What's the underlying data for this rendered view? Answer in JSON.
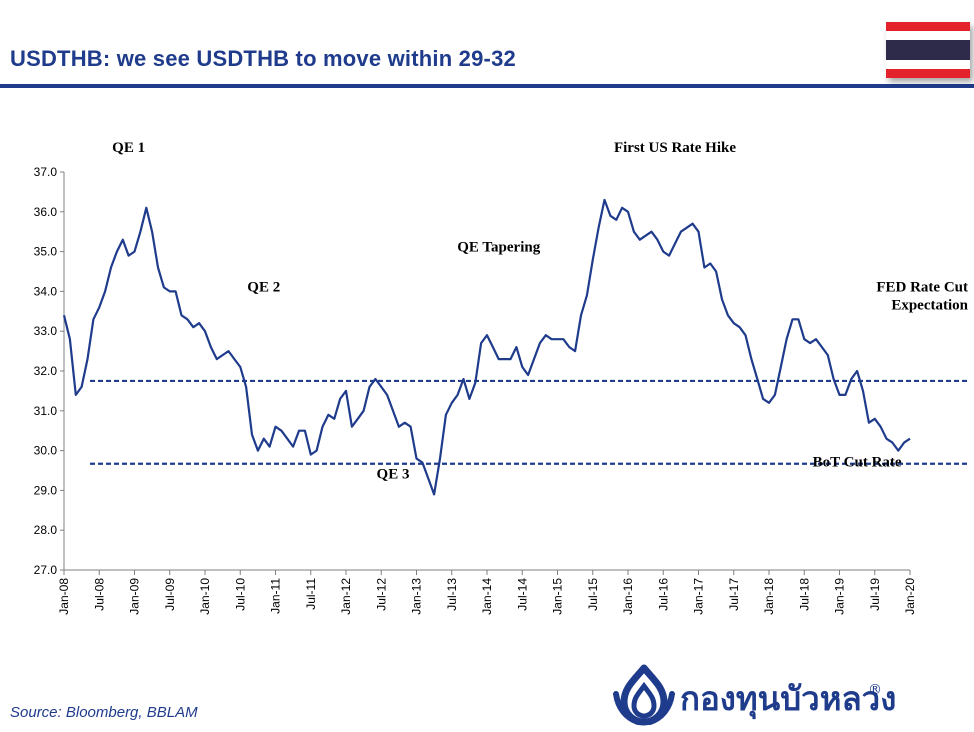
{
  "page": {
    "title": "USDTHB: we see USDTHB to move within 29-32",
    "source": "Source: Bloomberg, BBLAM",
    "logo_text": "กองทุนบัวหลวง",
    "logo_mark": "®",
    "flag_colors": [
      "#e4222c",
      "#ffffff",
      "#2d2a4a",
      "#ffffff",
      "#e4222c"
    ]
  },
  "colors": {
    "title": "#1f3b8c",
    "line": "#1f3b8c",
    "reference": "#1f3b8c"
  },
  "chart_data": {
    "type": "line",
    "title": "",
    "xlabel": "",
    "ylabel": "",
    "ylim": [
      27.0,
      37.0
    ],
    "y_ticks": [
      "27.0",
      "28.0",
      "29.0",
      "30.0",
      "31.0",
      "32.0",
      "33.0",
      "34.0",
      "35.0",
      "36.0",
      "37.0"
    ],
    "x_range": [
      "2008-01",
      "2020-01"
    ],
    "x_ticks": [
      "Jan-08",
      "Jul-08",
      "Jan-09",
      "Jul-09",
      "Jan-10",
      "Jul-10",
      "Jan-11",
      "Jul-11",
      "Jan-12",
      "Jul-12",
      "Jan-13",
      "Jul-13",
      "Jan-14",
      "Jul-14",
      "Jan-15",
      "Jul-15",
      "Jan-16",
      "Jul-16",
      "Jan-17",
      "Jul-17",
      "Jan-18",
      "Jul-18",
      "Jan-19",
      "Jul-19",
      "Jan-20"
    ],
    "grid": false,
    "legend": "none",
    "series": [
      {
        "x": [
          "2008-01",
          "2008-02",
          "2008-03",
          "2008-04",
          "2008-05",
          "2008-06",
          "2008-07",
          "2008-08",
          "2008-09",
          "2008-10",
          "2008-11",
          "2008-12",
          "2009-01",
          "2009-02",
          "2009-03",
          "2009-04",
          "2009-05",
          "2009-06",
          "2009-07",
          "2009-08",
          "2009-09",
          "2009-10",
          "2009-11",
          "2009-12",
          "2010-01",
          "2010-02",
          "2010-03",
          "2010-04",
          "2010-05",
          "2010-06",
          "2010-07",
          "2010-08",
          "2010-09",
          "2010-10",
          "2010-11",
          "2010-12",
          "2011-01",
          "2011-02",
          "2011-03",
          "2011-04",
          "2011-05",
          "2011-06",
          "2011-07",
          "2011-08",
          "2011-09",
          "2011-10",
          "2011-11",
          "2011-12",
          "2012-01",
          "2012-02",
          "2012-03",
          "2012-04",
          "2012-05",
          "2012-06",
          "2012-07",
          "2012-08",
          "2012-09",
          "2012-10",
          "2012-11",
          "2012-12",
          "2013-01",
          "2013-02",
          "2013-03",
          "2013-04",
          "2013-05",
          "2013-06",
          "2013-07",
          "2013-08",
          "2013-09",
          "2013-10",
          "2013-11",
          "2013-12",
          "2014-01",
          "2014-02",
          "2014-03",
          "2014-04",
          "2014-05",
          "2014-06",
          "2014-07",
          "2014-08",
          "2014-09",
          "2014-10",
          "2014-11",
          "2014-12",
          "2015-01",
          "2015-02",
          "2015-03",
          "2015-04",
          "2015-05",
          "2015-06",
          "2015-07",
          "2015-08",
          "2015-09",
          "2015-10",
          "2015-11",
          "2015-12",
          "2016-01",
          "2016-02",
          "2016-03",
          "2016-04",
          "2016-05",
          "2016-06",
          "2016-07",
          "2016-08",
          "2016-09",
          "2016-10",
          "2016-11",
          "2016-12",
          "2017-01",
          "2017-02",
          "2017-03",
          "2017-04",
          "2017-05",
          "2017-06",
          "2017-07",
          "2017-08",
          "2017-09",
          "2017-10",
          "2017-11",
          "2017-12",
          "2018-01",
          "2018-02",
          "2018-03",
          "2018-04",
          "2018-05",
          "2018-06",
          "2018-07",
          "2018-08",
          "2018-09",
          "2018-10",
          "2018-11",
          "2018-12",
          "2019-01",
          "2019-02",
          "2019-03",
          "2019-04",
          "2019-05",
          "2019-06",
          "2019-07",
          "2019-08",
          "2019-09",
          "2019-10",
          "2019-11",
          "2019-12",
          "2020-01"
        ],
        "values": [
          33.4,
          32.8,
          31.4,
          31.6,
          32.3,
          33.3,
          33.6,
          34.0,
          34.6,
          35.0,
          35.3,
          34.9,
          35.0,
          35.5,
          36.1,
          35.5,
          34.6,
          34.1,
          34.0,
          34.0,
          33.4,
          33.3,
          33.1,
          33.2,
          33.0,
          32.6,
          32.3,
          32.4,
          32.5,
          32.3,
          32.1,
          31.6,
          30.4,
          30.0,
          30.3,
          30.1,
          30.6,
          30.5,
          30.3,
          30.1,
          30.5,
          30.5,
          29.9,
          30.0,
          30.6,
          30.9,
          30.8,
          31.3,
          31.5,
          30.6,
          30.8,
          31.0,
          31.6,
          31.8,
          31.6,
          31.4,
          31.0,
          30.6,
          30.7,
          30.6,
          29.8,
          29.7,
          29.3,
          28.9,
          29.8,
          30.9,
          31.2,
          31.4,
          31.8,
          31.3,
          31.7,
          32.7,
          32.9,
          32.6,
          32.3,
          32.3,
          32.3,
          32.6,
          32.1,
          31.9,
          32.3,
          32.7,
          32.9,
          32.8,
          32.8,
          32.8,
          32.6,
          32.5,
          33.4,
          33.9,
          34.8,
          35.6,
          36.3,
          35.9,
          35.8,
          36.1,
          36.0,
          35.5,
          35.3,
          35.4,
          35.5,
          35.3,
          35.0,
          34.9,
          35.2,
          35.5,
          35.6,
          35.7,
          35.5,
          34.6,
          34.7,
          34.5,
          33.8,
          33.4,
          33.2,
          33.1,
          32.9,
          32.3,
          31.8,
          31.3,
          31.2,
          31.4,
          32.1,
          32.8,
          33.3,
          33.3,
          32.8,
          32.7,
          32.8,
          32.6,
          32.4,
          31.8,
          31.4,
          31.4,
          31.8,
          32.0,
          31.5,
          30.7,
          30.8,
          30.6,
          30.3,
          30.2,
          30.0,
          30.2,
          30.3
        ]
      }
    ],
    "reference_lines": [
      {
        "y": 31.75,
        "style": "dashed"
      },
      {
        "y": 29.67,
        "style": "dashed"
      }
    ],
    "annotations": [
      {
        "text": "QE 1",
        "x": "2008-12",
        "y": 37.5
      },
      {
        "text": "QE 2",
        "x": "2010-11",
        "y": 34.0
      },
      {
        "text": "QE 3",
        "x": "2012-09",
        "y": 29.3
      },
      {
        "text": "QE Tapering",
        "x": "2014-03",
        "y": 35.0
      },
      {
        "text": "First US Rate Hike",
        "x": "2016-09",
        "y": 37.5
      },
      {
        "text": "FED Rate Cut\nExpectation",
        "x": "2019-06",
        "y": 34.0
      },
      {
        "text": "BoT Cut Rate",
        "x": "2019-04",
        "y": 29.6
      }
    ]
  }
}
